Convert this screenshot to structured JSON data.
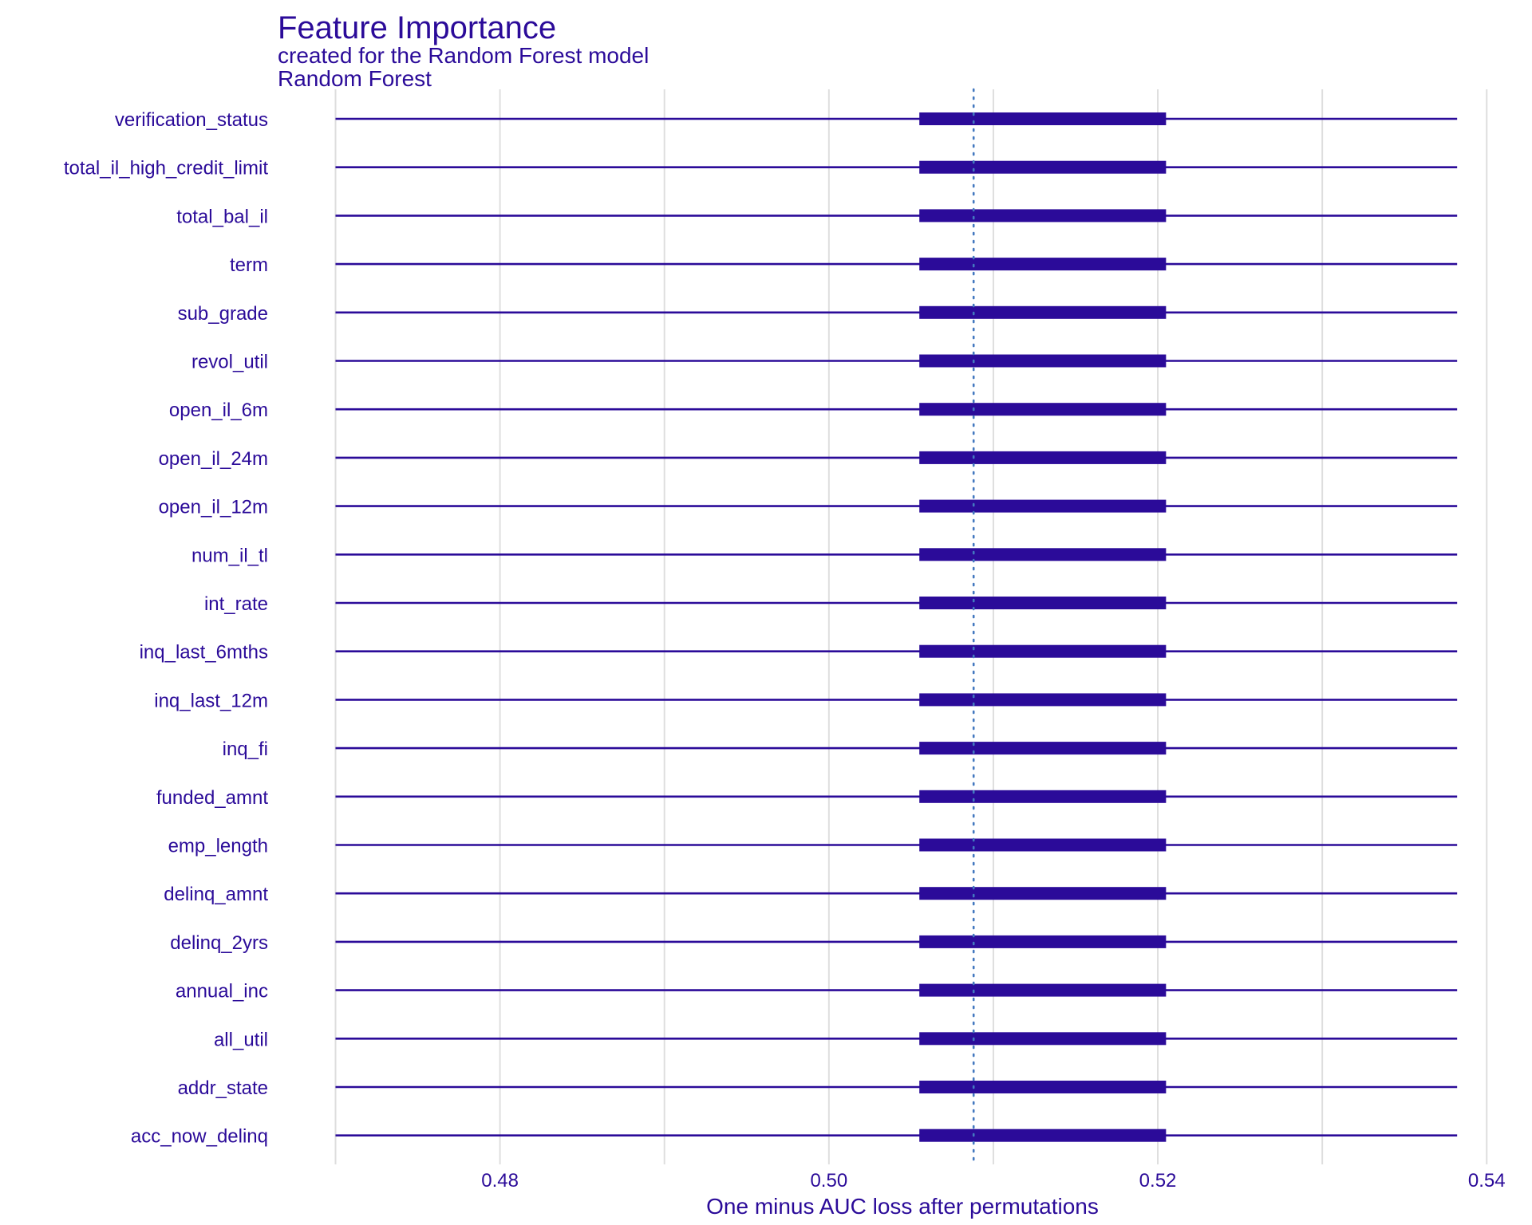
{
  "chart_data": {
    "type": "boxplot",
    "title": "Feature Importance",
    "subtitle": "created for the Random Forest model",
    "panel_label": "Random Forest",
    "xlabel": "One minus AUC loss after permutations",
    "ylabel": "",
    "xlim": [
      0.4692,
      0.5412
    ],
    "xticks": [
      0.48,
      0.5,
      0.52,
      0.54
    ],
    "xtick_labels": [
      "0.48",
      "0.50",
      "0.52",
      "0.54"
    ],
    "grid": true,
    "reference_line": 0.5088,
    "categories": [
      "verification_status",
      "total_il_high_credit_limit",
      "total_bal_il",
      "term",
      "sub_grade",
      "revol_util",
      "open_il_6m",
      "open_il_24m",
      "open_il_12m",
      "num_il_tl",
      "int_rate",
      "inq_last_6mths",
      "inq_last_12m",
      "inq_fi",
      "funded_amnt",
      "emp_length",
      "delinq_amnt",
      "delinq_2yrs",
      "annual_inc",
      "all_util",
      "addr_state",
      "acc_now_delinq"
    ],
    "box": {
      "whisker_low": 0.47,
      "q1": 0.5055,
      "q3": 0.5205,
      "whisker_high": 0.5382
    },
    "colors": {
      "main": "#2b0b99",
      "reference": "#4378bf",
      "grid": "#dedede"
    }
  }
}
